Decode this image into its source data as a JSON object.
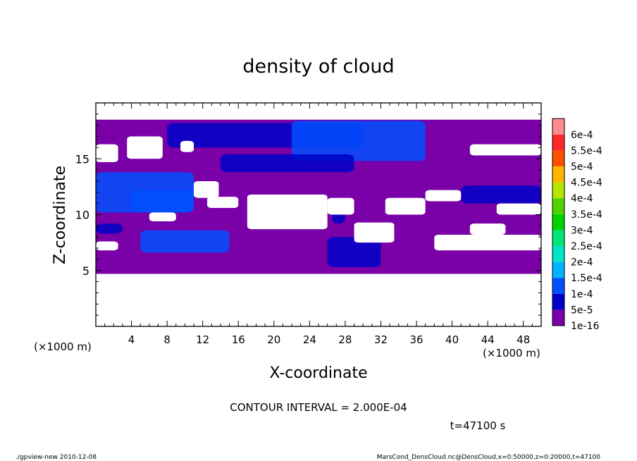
{
  "chart_data": {
    "type": "heatmap",
    "title": "density of cloud",
    "xlabel": "X-coordinate",
    "ylabel": "Z-coordinate",
    "x_unit_label": "(×1000 m)",
    "y_unit_label": "(×1000 m)",
    "xlim": [
      0,
      50
    ],
    "ylim": [
      0,
      20
    ],
    "x_ticks": [
      4,
      8,
      12,
      16,
      20,
      24,
      28,
      32,
      36,
      40,
      44,
      48
    ],
    "y_ticks": [
      5,
      10,
      15
    ],
    "contour_interval_text": "CONTOUR INTERVAL = 2.000E-04",
    "time_text": "t=47100 s",
    "footer_left": "./gpview-new  2010-12-08",
    "footer_right": "MarsCond_DensCloud.nc@DensCloud,x=0:50000,z=0:20000,t=47100",
    "colorbar": [
      {
        "label": "1e-16",
        "color": "#7a00a8"
      },
      {
        "label": "5e-5",
        "color": "#0000c8"
      },
      {
        "label": "1e-4",
        "color": "#0050ff"
      },
      {
        "label": "1.5e-4",
        "color": "#00b4ff"
      },
      {
        "label": "2e-4",
        "color": "#00e6c8"
      },
      {
        "label": "2.5e-4",
        "color": "#00e678"
      },
      {
        "label": "3e-4",
        "color": "#00d200"
      },
      {
        "label": "3.5e-4",
        "color": "#50d200"
      },
      {
        "label": "4e-4",
        "color": "#b4e600"
      },
      {
        "label": "4.5e-4",
        "color": "#ffb400"
      },
      {
        "label": "5e-4",
        "color": "#ff5000"
      },
      {
        "label": "5.5e-4",
        "color": "#ff2828"
      },
      {
        "label": "6e-4",
        "color": "#ff8c8c"
      }
    ],
    "cloud_layer_z": [
      4.7,
      18.5
    ],
    "gaps": [
      {
        "x0": 0.0,
        "x1": 2.5,
        "z0": 14.7,
        "z1": 16.3
      },
      {
        "x0": 3.5,
        "x1": 7.5,
        "z0": 15.0,
        "z1": 17.0
      },
      {
        "x0": 9.5,
        "x1": 11.0,
        "z0": 15.6,
        "z1": 16.6
      },
      {
        "x0": 11.0,
        "x1": 13.8,
        "z0": 11.5,
        "z1": 13.0
      },
      {
        "x0": 12.5,
        "x1": 16.0,
        "z0": 10.6,
        "z1": 11.6
      },
      {
        "x0": 17.0,
        "x1": 26.0,
        "z0": 8.7,
        "z1": 11.8
      },
      {
        "x0": 26.0,
        "x1": 29.0,
        "z0": 10.0,
        "z1": 11.5
      },
      {
        "x0": 29.0,
        "x1": 33.5,
        "z0": 7.5,
        "z1": 9.3
      },
      {
        "x0": 32.5,
        "x1": 37.0,
        "z0": 10.0,
        "z1": 11.5
      },
      {
        "x0": 37.0,
        "x1": 41.0,
        "z0": 11.2,
        "z1": 12.2
      },
      {
        "x0": 38.0,
        "x1": 50.0,
        "z0": 6.8,
        "z1": 8.2
      },
      {
        "x0": 42.0,
        "x1": 46.0,
        "z0": 8.2,
        "z1": 9.2
      },
      {
        "x0": 42.0,
        "x1": 50.0,
        "z0": 15.3,
        "z1": 16.3
      },
      {
        "x0": 45.0,
        "x1": 50.0,
        "z0": 10.0,
        "z1": 11.0
      },
      {
        "x0": 0.0,
        "x1": 2.5,
        "z0": 6.8,
        "z1": 7.6
      },
      {
        "x0": 6.0,
        "x1": 9.0,
        "z0": 9.4,
        "z1": 10.2
      }
    ],
    "blue_regions": [
      {
        "x0": 8.0,
        "x1": 30.0,
        "z0": 16.0,
        "z1": 18.2,
        "level": "5e-5"
      },
      {
        "x0": 22.0,
        "x1": 37.0,
        "z0": 14.8,
        "z1": 18.4,
        "level": "1e-4"
      },
      {
        "x0": 14.0,
        "x1": 29.0,
        "z0": 13.8,
        "z1": 15.4,
        "level": "5e-5"
      },
      {
        "x0": 0.0,
        "x1": 11.0,
        "z0": 10.2,
        "z1": 13.8,
        "level": "1e-4"
      },
      {
        "x0": 4.0,
        "x1": 11.0,
        "z0": 10.2,
        "z1": 12.2,
        "level": "1e-4"
      },
      {
        "x0": 5.0,
        "x1": 15.0,
        "z0": 6.6,
        "z1": 8.6,
        "level": "1e-4"
      },
      {
        "x0": 26.0,
        "x1": 32.0,
        "z0": 5.3,
        "z1": 8.0,
        "level": "5e-5"
      },
      {
        "x0": 41.0,
        "x1": 50.0,
        "z0": 11.0,
        "z1": 12.6,
        "level": "5e-5"
      },
      {
        "x0": 26.5,
        "x1": 28.0,
        "z0": 9.2,
        "z1": 10.2,
        "level": "5e-5"
      },
      {
        "x0": 0.0,
        "x1": 3.0,
        "z0": 8.3,
        "z1": 9.2,
        "level": "5e-5"
      }
    ]
  }
}
